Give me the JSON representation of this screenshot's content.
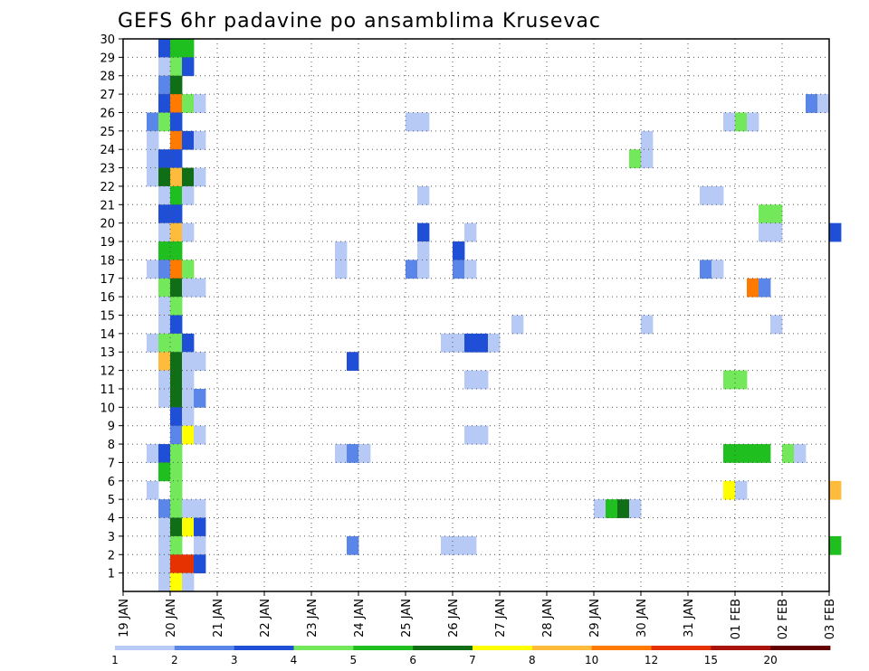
{
  "chart_data": {
    "type": "heatmap",
    "title": "GEFS 6hr padavine po ansamblima Krusevac",
    "xlabel": "",
    "ylabel": "",
    "x_ticks": [
      "19 JAN",
      "20 JAN",
      "21 JAN",
      "22 JAN",
      "23 JAN",
      "24 JAN",
      "25 JAN",
      "26 JAN",
      "27 JAN",
      "28 JAN",
      "29 JAN",
      "30 JAN",
      "31 JAN",
      "01 FEB",
      "02 FEB",
      "03 FEB"
    ],
    "y_ticks": [
      "1",
      "2",
      "3",
      "4",
      "5",
      "6",
      "7",
      "8",
      "9",
      "10",
      "11",
      "12",
      "13",
      "14",
      "15",
      "16",
      "17",
      "18",
      "19",
      "20",
      "21",
      "22",
      "23",
      "24",
      "25",
      "26",
      "27",
      "28",
      "29",
      "30"
    ],
    "ylim": [
      0,
      30
    ],
    "grid": true,
    "time_step_hours": 6,
    "legend_position": "bottom",
    "colorbar": {
      "labels": [
        "1",
        "2",
        "3",
        "4",
        "5",
        "6",
        "7",
        "8",
        "10",
        "12",
        "15",
        "20"
      ],
      "colors": [
        "#b7c9f5",
        "#5a86ea",
        "#1f4fd6",
        "#72e85a",
        "#1fbf1f",
        "#0f6e16",
        "#ffff00",
        "#ffbb3c",
        "#ff7a00",
        "#e53200",
        "#a8140a",
        "#650000"
      ]
    },
    "cells": [
      {
        "member": 30,
        "cells": [
          [
            0.75,
            3
          ],
          [
            1.0,
            5
          ],
          [
            1.25,
            5
          ]
        ]
      },
      {
        "member": 29,
        "cells": [
          [
            0.75,
            1
          ],
          [
            1.0,
            4
          ],
          [
            1.25,
            3
          ]
        ]
      },
      {
        "member": 28,
        "cells": [
          [
            0.75,
            2
          ],
          [
            1.0,
            6
          ]
        ]
      },
      {
        "member": 27,
        "cells": [
          [
            0.75,
            3
          ],
          [
            1.0,
            9
          ],
          [
            1.25,
            4
          ],
          [
            1.5,
            1
          ],
          [
            14.5,
            2
          ],
          [
            14.75,
            1
          ]
        ]
      },
      {
        "member": 26,
        "cells": [
          [
            0.5,
            2
          ],
          [
            0.75,
            4
          ],
          [
            1.0,
            3
          ],
          [
            6.0,
            1
          ],
          [
            6.25,
            1
          ],
          [
            12.75,
            1
          ],
          [
            13.0,
            4
          ],
          [
            13.25,
            1
          ]
        ]
      },
      {
        "member": 25,
        "cells": [
          [
            0.5,
            1
          ],
          [
            1.0,
            9
          ],
          [
            1.25,
            3
          ],
          [
            1.5,
            1
          ],
          [
            11.0,
            1
          ]
        ]
      },
      {
        "member": 24,
        "cells": [
          [
            0.5,
            1
          ],
          [
            0.75,
            3
          ],
          [
            1.0,
            3
          ],
          [
            10.75,
            4
          ],
          [
            11.0,
            1
          ]
        ]
      },
      {
        "member": 23,
        "cells": [
          [
            0.5,
            1
          ],
          [
            0.75,
            6
          ],
          [
            1.0,
            8
          ],
          [
            1.25,
            6
          ],
          [
            1.5,
            1
          ]
        ]
      },
      {
        "member": 22,
        "cells": [
          [
            0.75,
            1
          ],
          [
            1.0,
            5
          ],
          [
            1.25,
            1
          ],
          [
            6.25,
            1
          ],
          [
            12.25,
            1
          ],
          [
            12.5,
            1
          ]
        ]
      },
      {
        "member": 21,
        "cells": [
          [
            0.75,
            3
          ],
          [
            1.0,
            3
          ],
          [
            13.5,
            4
          ],
          [
            13.75,
            4
          ]
        ]
      },
      {
        "member": 20,
        "cells": [
          [
            0.75,
            1
          ],
          [
            1.0,
            8
          ],
          [
            1.25,
            1
          ],
          [
            6.25,
            3
          ],
          [
            7.25,
            1
          ],
          [
            13.5,
            1
          ],
          [
            13.75,
            1
          ],
          [
            15.0,
            3
          ]
        ]
      },
      {
        "member": 19,
        "cells": [
          [
            0.75,
            5
          ],
          [
            1.0,
            5
          ],
          [
            4.5,
            1
          ],
          [
            6.25,
            1
          ],
          [
            7.0,
            3
          ]
        ]
      },
      {
        "member": 18,
        "cells": [
          [
            0.5,
            1
          ],
          [
            0.75,
            2
          ],
          [
            1.0,
            9
          ],
          [
            1.25,
            4
          ],
          [
            4.5,
            1
          ],
          [
            6.0,
            2
          ],
          [
            6.25,
            1
          ],
          [
            7.0,
            2
          ],
          [
            7.25,
            1
          ],
          [
            12.25,
            2
          ],
          [
            12.5,
            1
          ]
        ]
      },
      {
        "member": 17,
        "cells": [
          [
            0.75,
            4
          ],
          [
            1.0,
            6
          ],
          [
            1.25,
            1
          ],
          [
            1.5,
            1
          ],
          [
            13.25,
            9
          ],
          [
            13.5,
            2
          ]
        ]
      },
      {
        "member": 16,
        "cells": [
          [
            0.75,
            1
          ],
          [
            1.0,
            4
          ]
        ]
      },
      {
        "member": 15,
        "cells": [
          [
            0.75,
            1
          ],
          [
            1.0,
            3
          ],
          [
            8.25,
            1
          ],
          [
            11.0,
            1
          ],
          [
            13.75,
            1
          ]
        ]
      },
      {
        "member": 14,
        "cells": [
          [
            0.5,
            1
          ],
          [
            0.75,
            4
          ],
          [
            1.0,
            4
          ],
          [
            1.25,
            3
          ],
          [
            6.75,
            1
          ],
          [
            7.0,
            1
          ],
          [
            7.25,
            3
          ],
          [
            7.5,
            3
          ],
          [
            7.75,
            1
          ]
        ]
      },
      {
        "member": 13,
        "cells": [
          [
            0.75,
            8
          ],
          [
            1.0,
            6
          ],
          [
            1.25,
            1
          ],
          [
            1.5,
            1
          ],
          [
            4.75,
            3
          ]
        ]
      },
      {
        "member": 12,
        "cells": [
          [
            0.75,
            1
          ],
          [
            1.0,
            6
          ],
          [
            1.25,
            1
          ],
          [
            7.25,
            1
          ],
          [
            7.5,
            1
          ],
          [
            12.75,
            4
          ],
          [
            13.0,
            4
          ]
        ]
      },
      {
        "member": 11,
        "cells": [
          [
            0.75,
            1
          ],
          [
            1.0,
            6
          ],
          [
            1.25,
            1
          ],
          [
            1.5,
            2
          ]
        ]
      },
      {
        "member": 10,
        "cells": [
          [
            1.0,
            3
          ],
          [
            1.25,
            1
          ]
        ]
      },
      {
        "member": 9,
        "cells": [
          [
            1.0,
            2
          ],
          [
            1.25,
            7
          ],
          [
            1.5,
            1
          ],
          [
            7.25,
            1
          ],
          [
            7.5,
            1
          ]
        ]
      },
      {
        "member": 8,
        "cells": [
          [
            0.5,
            1
          ],
          [
            0.75,
            3
          ],
          [
            1.0,
            4
          ],
          [
            4.5,
            1
          ],
          [
            4.75,
            2
          ],
          [
            5.0,
            1
          ],
          [
            12.75,
            5
          ],
          [
            13.0,
            5
          ],
          [
            13.25,
            5
          ],
          [
            13.5,
            5
          ],
          [
            14.0,
            4
          ],
          [
            14.25,
            1
          ]
        ]
      },
      {
        "member": 7,
        "cells": [
          [
            0.75,
            5
          ],
          [
            1.0,
            4
          ]
        ]
      },
      {
        "member": 6,
        "cells": [
          [
            0.5,
            1
          ],
          [
            1.0,
            4
          ],
          [
            12.75,
            7
          ],
          [
            13.0,
            1
          ],
          [
            15.0,
            8
          ]
        ]
      },
      {
        "member": 5,
        "cells": [
          [
            0.75,
            2
          ],
          [
            1.0,
            4
          ],
          [
            1.25,
            1
          ],
          [
            1.5,
            1
          ],
          [
            10.0,
            1
          ],
          [
            10.25,
            5
          ],
          [
            10.5,
            6
          ],
          [
            10.75,
            1
          ]
        ]
      },
      {
        "member": 4,
        "cells": [
          [
            0.75,
            1
          ],
          [
            1.0,
            6
          ],
          [
            1.25,
            7
          ],
          [
            1.5,
            3
          ]
        ]
      },
      {
        "member": 3,
        "cells": [
          [
            0.75,
            1
          ],
          [
            1.0,
            4
          ],
          [
            1.5,
            1
          ],
          [
            4.75,
            2
          ],
          [
            6.75,
            1
          ],
          [
            7.0,
            1
          ],
          [
            7.25,
            1
          ],
          [
            15.0,
            5
          ]
        ]
      },
      {
        "member": 2,
        "cells": [
          [
            0.75,
            1
          ],
          [
            1.0,
            10
          ],
          [
            1.25,
            10
          ],
          [
            1.5,
            3
          ]
        ]
      },
      {
        "member": 1,
        "cells": [
          [
            0.75,
            1
          ],
          [
            1.0,
            7
          ],
          [
            1.25,
            1
          ]
        ]
      }
    ]
  }
}
